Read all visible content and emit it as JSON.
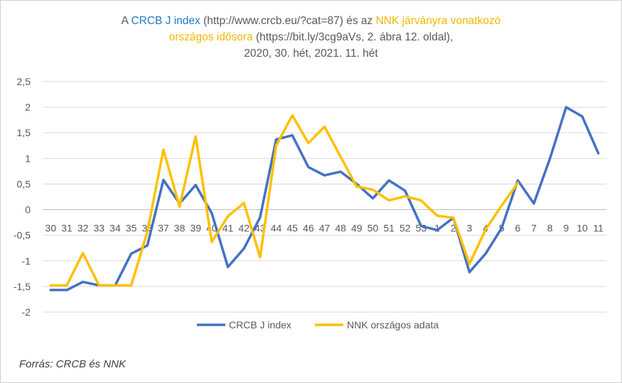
{
  "title": {
    "l1_a": "A ",
    "l1_b": "CRCB J index",
    "l1_c": " (http://www.crcb.eu/?cat=87) és az ",
    "l1_d": "NNK járványra vonatkozó",
    "l2_a": "országos idősora",
    "l2_b": " (https://bit.ly/3cg9aVs, 2. ábra 12. oldal),",
    "l3": "2020, 30. hét, 2021. 11. hét"
  },
  "source": "Forrás: CRCB és NNK",
  "chart_data": {
    "type": "line",
    "categories": [
      "30",
      "31",
      "32",
      "33",
      "34",
      "35",
      "36",
      "37",
      "38",
      "39",
      "40",
      "41",
      "42",
      "43",
      "44",
      "45",
      "46",
      "47",
      "48",
      "49",
      "50",
      "51",
      "52",
      "53",
      "1",
      "2",
      "3",
      "4",
      "5",
      "6",
      "7",
      "8",
      "9",
      "10",
      "11"
    ],
    "ylim": [
      -2,
      2.5
    ],
    "yticks": [
      "2,5",
      "2",
      "1,5",
      "1",
      "0,5",
      "0",
      "-0,5",
      "-1",
      "-1,5",
      "-2"
    ],
    "ytick_values": [
      2.5,
      2,
      1.5,
      1,
      0.5,
      0,
      -0.5,
      -1,
      -1.5,
      -2
    ],
    "grid": true,
    "legend": "bottom",
    "series": [
      {
        "name": "CRCB J index",
        "color": "#4472c4",
        "values": [
          -1.57,
          -1.57,
          -1.41,
          -1.48,
          -1.48,
          -0.86,
          -0.7,
          0.58,
          0.12,
          0.48,
          -0.07,
          -1.12,
          -0.76,
          -0.15,
          1.37,
          1.45,
          0.83,
          0.67,
          0.74,
          0.5,
          0.22,
          0.57,
          0.37,
          -0.32,
          -0.4,
          -0.16,
          -1.22,
          -0.86,
          -0.36,
          0.57,
          0.12,
          1.0,
          2.0,
          1.82,
          1.1
        ]
      },
      {
        "name": "NNK országos adata",
        "color": "#ffc000",
        "values": [
          -1.48,
          -1.48,
          -0.85,
          -1.48,
          -1.48,
          -1.48,
          -0.43,
          1.17,
          0.06,
          1.43,
          -0.63,
          -0.13,
          0.13,
          -0.93,
          1.25,
          1.84,
          1.3,
          1.62,
          1.03,
          0.45,
          0.39,
          0.18,
          0.26,
          0.18,
          -0.12,
          -0.16,
          -1.06,
          -0.39,
          0.08,
          0.52,
          null,
          null,
          null,
          null,
          null
        ]
      }
    ]
  }
}
